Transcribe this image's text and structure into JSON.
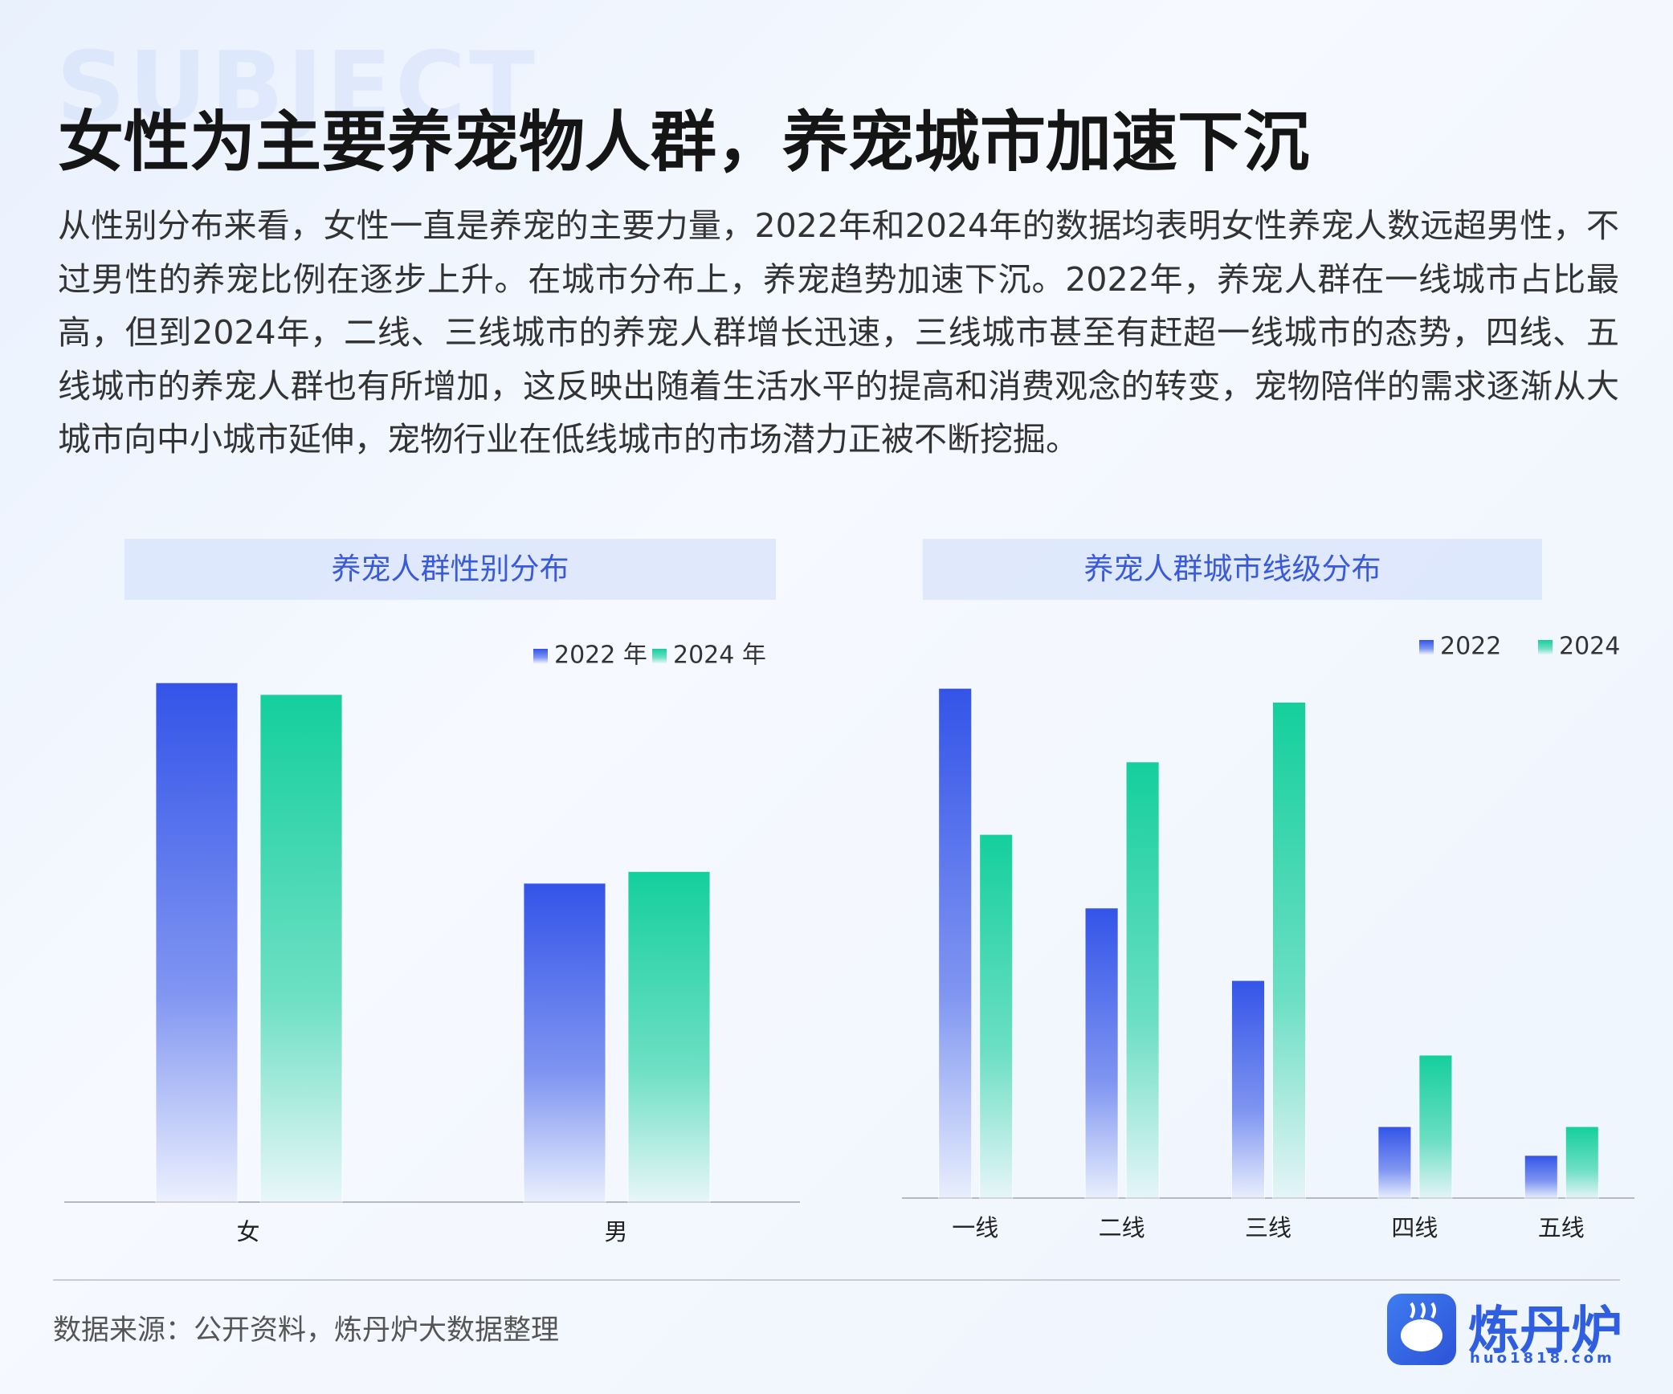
{
  "header": {
    "watermark": "SUBJECT",
    "title": "女性为主要养宠物人群，养宠城市加速下沉",
    "body": "从性别分布来看，女性一直是养宠的主要力量，2022年和2024年的数据均表明女性养宠人数远超男性，不过男性的养宠比例在逐步上升。在城市分布上，养宠趋势加速下沉。2022年，养宠人群在一线城市占比最高，但到2024年，二线、三线城市的养宠人群增长迅速，三线城市甚至有赶超一线城市的态势，四线、五线城市的养宠人群也有所增加，这反映出随着生活水平的提高和消费观念的转变，宠物陪伴的需求逐渐从大城市向中小城市延伸，宠物行业在低线城市的市场潜力正被不断挖掘。"
  },
  "chart_data": [
    {
      "type": "bar",
      "title": "养宠人群性别分布",
      "categories": [
        "女",
        "男"
      ],
      "series": [
        {
          "name": "2022 年",
          "color": "#3354e8",
          "values": [
            487,
            299
          ]
        },
        {
          "name": "2024 年",
          "color": "#14cf9d",
          "values": [
            476,
            310
          ]
        }
      ],
      "ylim": [
        0,
        500
      ]
    },
    {
      "type": "bar",
      "title": "养宠人群城市线级分布",
      "categories": [
        "一线",
        "二线",
        "三线",
        "四线",
        "五线"
      ],
      "series": [
        {
          "name": "2022",
          "color": "#3354e8",
          "values": [
            478,
            272,
            204,
            67,
            40
          ]
        },
        {
          "name": "2024",
          "color": "#14cf9d",
          "values": [
            341,
            409,
            465,
            134,
            67
          ]
        }
      ],
      "ylim": [
        0,
        500
      ]
    }
  ],
  "footer": {
    "source": "数据来源：公开资料，炼丹炉大数据整理",
    "brand": "炼丹炉",
    "url": "huo1818.com"
  }
}
